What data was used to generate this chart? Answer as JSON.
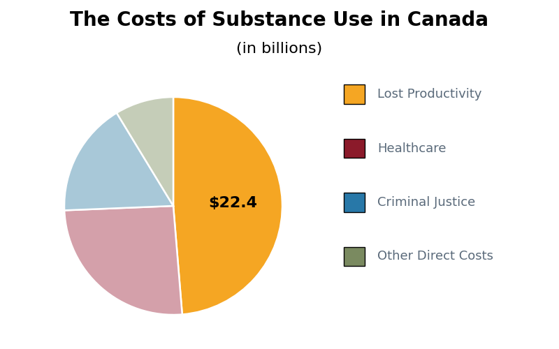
{
  "title_line1": "The Costs of Substance Use in Canada",
  "title_line2": "(in billions)",
  "slices": [
    {
      "label": "Lost Productivity",
      "value": 22.4,
      "color": "#F5A623",
      "legend_color": "#F5A623"
    },
    {
      "label": "Healthcare",
      "value": 11.8,
      "color": "#D4A0AA",
      "legend_color": "#8B1A2A"
    },
    {
      "label": "Criminal Justice",
      "value": 7.8,
      "color": "#A8C8D8",
      "legend_color": "#2878A8"
    },
    {
      "label": "Other Direct Costs",
      "value": 4.0,
      "color": "#C5CDB8",
      "legend_color": "#7A8A60"
    }
  ],
  "annotation": "$22.4",
  "annotation_fontsize": 16,
  "annotation_fontweight": "bold",
  "title_fontsize1": 20,
  "title_fontsize2": 16,
  "legend_fontsize": 13,
  "legend_text_color": "#5a6a7a",
  "startangle": 90,
  "background_color": "#ffffff"
}
